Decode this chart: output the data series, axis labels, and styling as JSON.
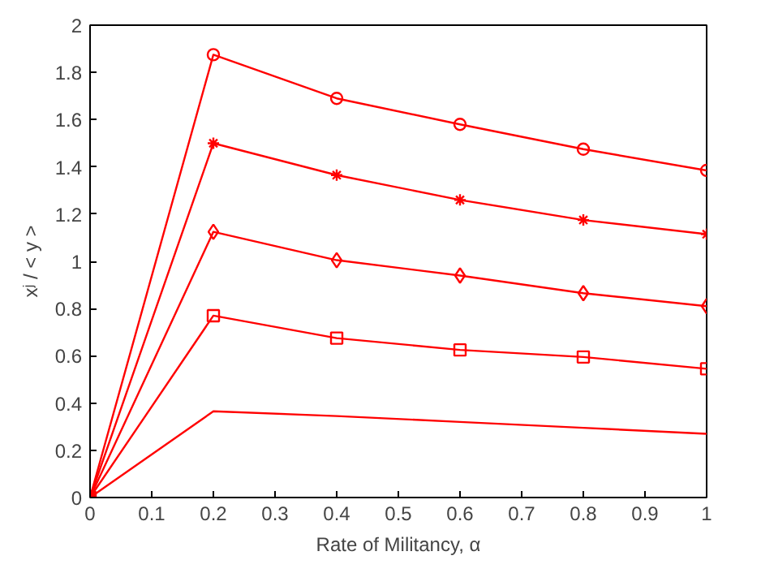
{
  "chart_data": {
    "type": "line",
    "xlabel": "Rate of Militancy, α",
    "ylabel": "xʲ / < y >",
    "x": [
      0,
      0.2,
      0.4,
      0.6,
      0.8,
      1
    ],
    "series": [
      {
        "color": "#ff0000",
        "marker": "circle",
        "values": [
          0,
          1.875,
          1.69,
          1.58,
          1.475,
          1.385
        ]
      },
      {
        "color": "#ff0000",
        "marker": "cross",
        "values": [
          0,
          1.5,
          1.365,
          1.26,
          1.175,
          1.115
        ]
      },
      {
        "color": "#ff0000",
        "marker": "diamond",
        "values": [
          0,
          1.125,
          1.005,
          0.94,
          0.865,
          0.81
        ]
      },
      {
        "color": "#ff0000",
        "marker": "square",
        "values": [
          0,
          0.77,
          0.675,
          0.625,
          0.595,
          0.545
        ]
      },
      {
        "color": "#ff0000",
        "marker": "none",
        "values": [
          0,
          0.365,
          0.345,
          0.32,
          0.295,
          0.27
        ]
      }
    ],
    "xlim": [
      0,
      1
    ],
    "ylim": [
      0,
      2
    ],
    "xticks": [
      0,
      0.1,
      0.2,
      0.3,
      0.4,
      0.5,
      0.6,
      0.7,
      0.8,
      0.9,
      1
    ],
    "yticks": [
      0,
      0.2,
      0.4,
      0.6,
      0.8,
      1,
      1.2,
      1.4,
      1.6,
      1.8,
      2
    ],
    "grid": false,
    "line_style": "solid"
  }
}
